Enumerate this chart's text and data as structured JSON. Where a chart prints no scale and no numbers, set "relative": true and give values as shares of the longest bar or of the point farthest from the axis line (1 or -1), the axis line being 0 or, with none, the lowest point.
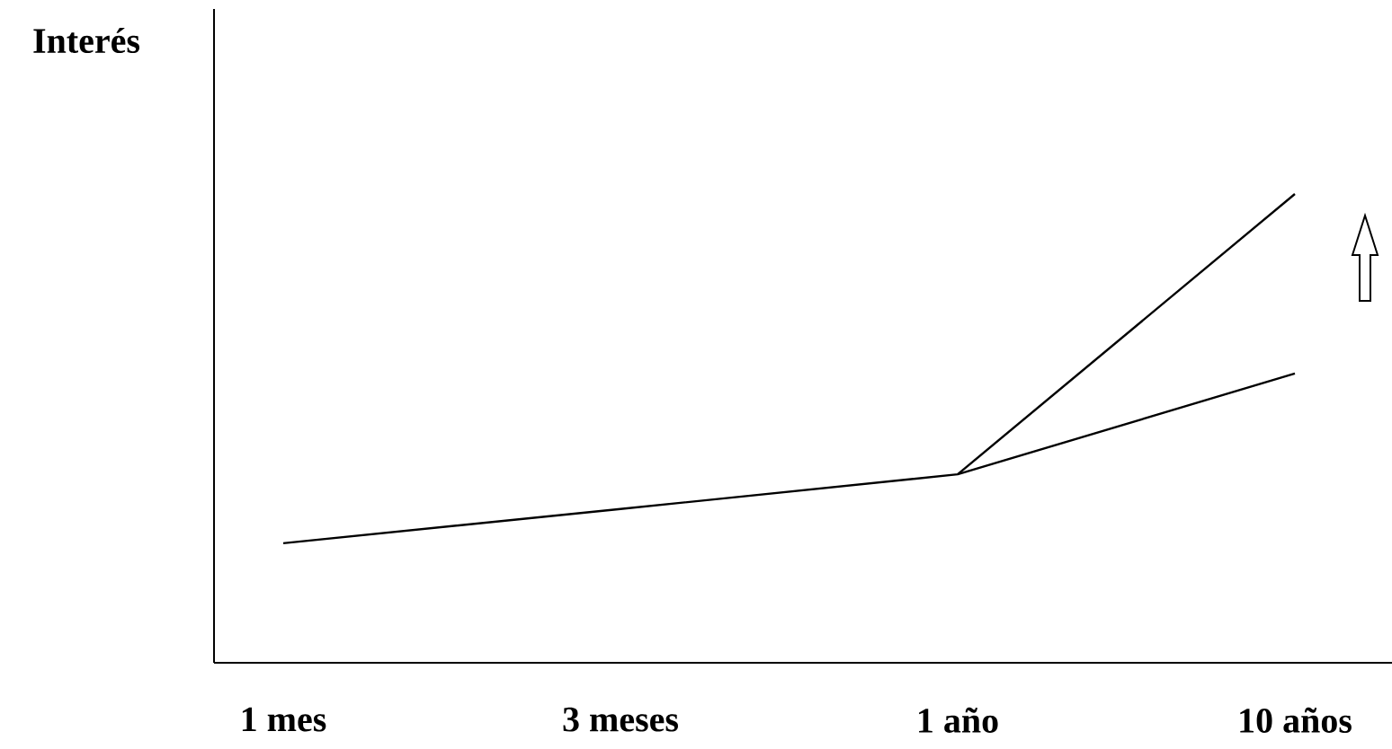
{
  "chart_data": {
    "type": "line",
    "relative": true,
    "ylabel": "Interés",
    "categories": [
      "1 mes",
      "3 meses",
      "1 año",
      "10 años"
    ],
    "series": [
      {
        "color": "#000000",
        "values": [
          0.255,
          0.328,
          0.402,
          0.617
        ]
      },
      {
        "color": "#000000",
        "values": [
          null,
          null,
          0.402,
          1.0
        ]
      }
    ]
  }
}
